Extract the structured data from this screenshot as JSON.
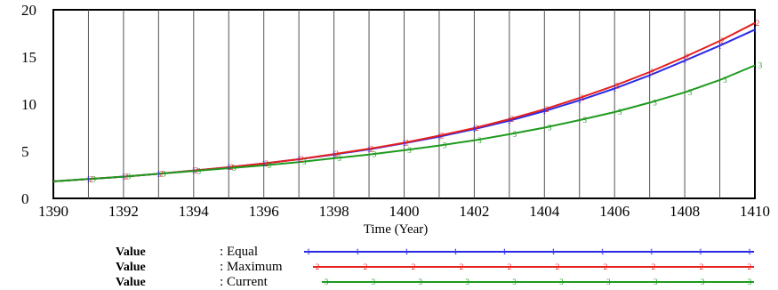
{
  "chart_data": {
    "type": "line",
    "xlabel": "Time (Year)",
    "ylabel": "",
    "xlim": [
      1390,
      1410
    ],
    "ylim": [
      0,
      20
    ],
    "x_ticks": [
      "1390",
      "1392",
      "1394",
      "1396",
      "1398",
      "1400",
      "1402",
      "1404",
      "1406",
      "1408",
      "1410"
    ],
    "y_ticks": [
      "0",
      "5",
      "10",
      "15",
      "20"
    ],
    "grid": "vertical",
    "series": [
      {
        "name": "Equal",
        "legend_prefix": "Value",
        "color": "#2a2ae6",
        "marker": "1",
        "x": [
          1390,
          1391,
          1392,
          1393,
          1394,
          1395,
          1396,
          1397,
          1398,
          1399,
          1400,
          1401,
          1402,
          1403,
          1404,
          1405,
          1406,
          1407,
          1408,
          1409,
          1410
        ],
        "values": [
          1.8,
          2.05,
          2.3,
          2.6,
          2.95,
          3.3,
          3.7,
          4.15,
          4.65,
          5.2,
          5.85,
          6.55,
          7.35,
          8.25,
          9.25,
          10.4,
          11.65,
          13.05,
          14.6,
          16.2,
          17.9
        ]
      },
      {
        "name": "Maximum",
        "legend_prefix": "Value",
        "color": "#e61e1e",
        "marker": "2",
        "x": [
          1390,
          1391,
          1392,
          1393,
          1394,
          1395,
          1396,
          1397,
          1398,
          1399,
          1400,
          1401,
          1402,
          1403,
          1404,
          1405,
          1406,
          1407,
          1408,
          1409,
          1410
        ],
        "values": [
          1.8,
          2.05,
          2.3,
          2.6,
          2.95,
          3.3,
          3.7,
          4.15,
          4.7,
          5.25,
          5.9,
          6.65,
          7.45,
          8.4,
          9.45,
          10.65,
          11.95,
          13.4,
          15.0,
          16.7,
          18.6
        ]
      },
      {
        "name": "Current",
        "legend_prefix": "Value",
        "color": "#1e9a1e",
        "marker": "3",
        "x": [
          1390,
          1391,
          1392,
          1393,
          1394,
          1395,
          1396,
          1397,
          1398,
          1399,
          1400,
          1401,
          1402,
          1403,
          1404,
          1405,
          1406,
          1407,
          1408,
          1409,
          1410
        ],
        "values": [
          1.8,
          2.05,
          2.3,
          2.6,
          2.9,
          3.2,
          3.5,
          3.85,
          4.25,
          4.65,
          5.1,
          5.6,
          6.15,
          6.8,
          7.5,
          8.3,
          9.15,
          10.15,
          11.25,
          12.55,
          14.1
        ]
      }
    ]
  }
}
